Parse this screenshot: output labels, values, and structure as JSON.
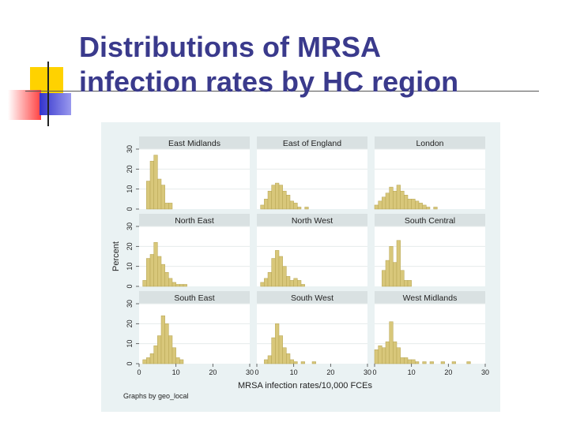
{
  "slide": {
    "title_line1": "Distributions of MRSA",
    "title_line2": "infection rates by HC region"
  },
  "colors": {
    "title": "#3a3a8c",
    "bar_fill": "#d8c77a",
    "bar_stroke": "#b5a352",
    "panel_header": "#d9e1e2",
    "plot_bg": "#ffffff",
    "figure_bg": "#eaf2f3",
    "deco_yellow": "#ffd200",
    "deco_red": "#ff4040",
    "deco_blue": "#3333cc"
  },
  "chart_data": {
    "type": "bar",
    "xlabel": "MRSA infection rates/10,000 FCEs",
    "ylabel": "Percent",
    "note": "Graphs by geo_local",
    "x_ticks": [
      "0",
      "10",
      "20",
      "30"
    ],
    "y_ticks": [
      "0",
      "10",
      "20",
      "30"
    ],
    "xlim": [
      0,
      30
    ],
    "ylim": [
      0,
      30
    ],
    "bin_width": 1,
    "grid": true,
    "panels": [
      {
        "name": "East Midlands",
        "bins": [
          {
            "x": 2,
            "y": 14
          },
          {
            "x": 3,
            "y": 24
          },
          {
            "x": 4,
            "y": 27
          },
          {
            "x": 5,
            "y": 15
          },
          {
            "x": 6,
            "y": 12
          },
          {
            "x": 7,
            "y": 3
          },
          {
            "x": 8,
            "y": 3
          }
        ]
      },
      {
        "name": "East of England",
        "bins": [
          {
            "x": 1,
            "y": 2
          },
          {
            "x": 2,
            "y": 5
          },
          {
            "x": 3,
            "y": 9
          },
          {
            "x": 4,
            "y": 12
          },
          {
            "x": 5,
            "y": 13
          },
          {
            "x": 6,
            "y": 12
          },
          {
            "x": 7,
            "y": 9
          },
          {
            "x": 8,
            "y": 7
          },
          {
            "x": 9,
            "y": 4
          },
          {
            "x": 10,
            "y": 3
          },
          {
            "x": 11,
            "y": 1
          },
          {
            "x": 13,
            "y": 1
          }
        ]
      },
      {
        "name": "London",
        "bins": [
          {
            "x": 0,
            "y": 2
          },
          {
            "x": 1,
            "y": 4
          },
          {
            "x": 2,
            "y": 6
          },
          {
            "x": 3,
            "y": 8
          },
          {
            "x": 4,
            "y": 11
          },
          {
            "x": 5,
            "y": 9
          },
          {
            "x": 6,
            "y": 12
          },
          {
            "x": 7,
            "y": 9
          },
          {
            "x": 8,
            "y": 7
          },
          {
            "x": 9,
            "y": 5
          },
          {
            "x": 10,
            "y": 5
          },
          {
            "x": 11,
            "y": 4
          },
          {
            "x": 12,
            "y": 3
          },
          {
            "x": 13,
            "y": 2
          },
          {
            "x": 14,
            "y": 1
          },
          {
            "x": 16,
            "y": 1
          }
        ]
      },
      {
        "name": "North East",
        "bins": [
          {
            "x": 1,
            "y": 3
          },
          {
            "x": 2,
            "y": 14
          },
          {
            "x": 3,
            "y": 16
          },
          {
            "x": 4,
            "y": 22
          },
          {
            "x": 5,
            "y": 15
          },
          {
            "x": 6,
            "y": 11
          },
          {
            "x": 7,
            "y": 7
          },
          {
            "x": 8,
            "y": 4
          },
          {
            "x": 9,
            "y": 2
          },
          {
            "x": 10,
            "y": 1
          },
          {
            "x": 11,
            "y": 1
          },
          {
            "x": 12,
            "y": 1
          }
        ]
      },
      {
        "name": "North West",
        "bins": [
          {
            "x": 1,
            "y": 2
          },
          {
            "x": 2,
            "y": 4
          },
          {
            "x": 3,
            "y": 7
          },
          {
            "x": 4,
            "y": 14
          },
          {
            "x": 5,
            "y": 18
          },
          {
            "x": 6,
            "y": 15
          },
          {
            "x": 7,
            "y": 10
          },
          {
            "x": 8,
            "y": 5
          },
          {
            "x": 9,
            "y": 3
          },
          {
            "x": 10,
            "y": 4
          },
          {
            "x": 11,
            "y": 3
          },
          {
            "x": 12,
            "y": 1
          }
        ]
      },
      {
        "name": "South Central",
        "bins": [
          {
            "x": 2,
            "y": 8
          },
          {
            "x": 3,
            "y": 13
          },
          {
            "x": 4,
            "y": 20
          },
          {
            "x": 5,
            "y": 12
          },
          {
            "x": 6,
            "y": 23
          },
          {
            "x": 7,
            "y": 8
          },
          {
            "x": 8,
            "y": 3
          },
          {
            "x": 9,
            "y": 3
          }
        ]
      },
      {
        "name": "South East",
        "bins": [
          {
            "x": 1,
            "y": 2
          },
          {
            "x": 2,
            "y": 3
          },
          {
            "x": 3,
            "y": 5
          },
          {
            "x": 4,
            "y": 9
          },
          {
            "x": 5,
            "y": 14
          },
          {
            "x": 6,
            "y": 24
          },
          {
            "x": 7,
            "y": 20
          },
          {
            "x": 8,
            "y": 14
          },
          {
            "x": 9,
            "y": 8
          },
          {
            "x": 10,
            "y": 3
          },
          {
            "x": 11,
            "y": 2
          }
        ]
      },
      {
        "name": "South West",
        "bins": [
          {
            "x": 2,
            "y": 2
          },
          {
            "x": 3,
            "y": 4
          },
          {
            "x": 4,
            "y": 13
          },
          {
            "x": 5,
            "y": 20
          },
          {
            "x": 6,
            "y": 14
          },
          {
            "x": 7,
            "y": 8
          },
          {
            "x": 8,
            "y": 5
          },
          {
            "x": 9,
            "y": 2
          },
          {
            "x": 10,
            "y": 1
          },
          {
            "x": 12,
            "y": 1
          },
          {
            "x": 15,
            "y": 1
          }
        ]
      },
      {
        "name": "West Midlands",
        "bins": [
          {
            "x": 0,
            "y": 7
          },
          {
            "x": 1,
            "y": 9
          },
          {
            "x": 2,
            "y": 8
          },
          {
            "x": 3,
            "y": 11
          },
          {
            "x": 4,
            "y": 21
          },
          {
            "x": 5,
            "y": 11
          },
          {
            "x": 6,
            "y": 8
          },
          {
            "x": 7,
            "y": 3
          },
          {
            "x": 8,
            "y": 3
          },
          {
            "x": 9,
            "y": 2
          },
          {
            "x": 10,
            "y": 2
          },
          {
            "x": 11,
            "y": 1
          },
          {
            "x": 13,
            "y": 1
          },
          {
            "x": 15,
            "y": 1
          },
          {
            "x": 18,
            "y": 1
          },
          {
            "x": 21,
            "y": 1
          },
          {
            "x": 25,
            "y": 1
          }
        ]
      }
    ]
  }
}
